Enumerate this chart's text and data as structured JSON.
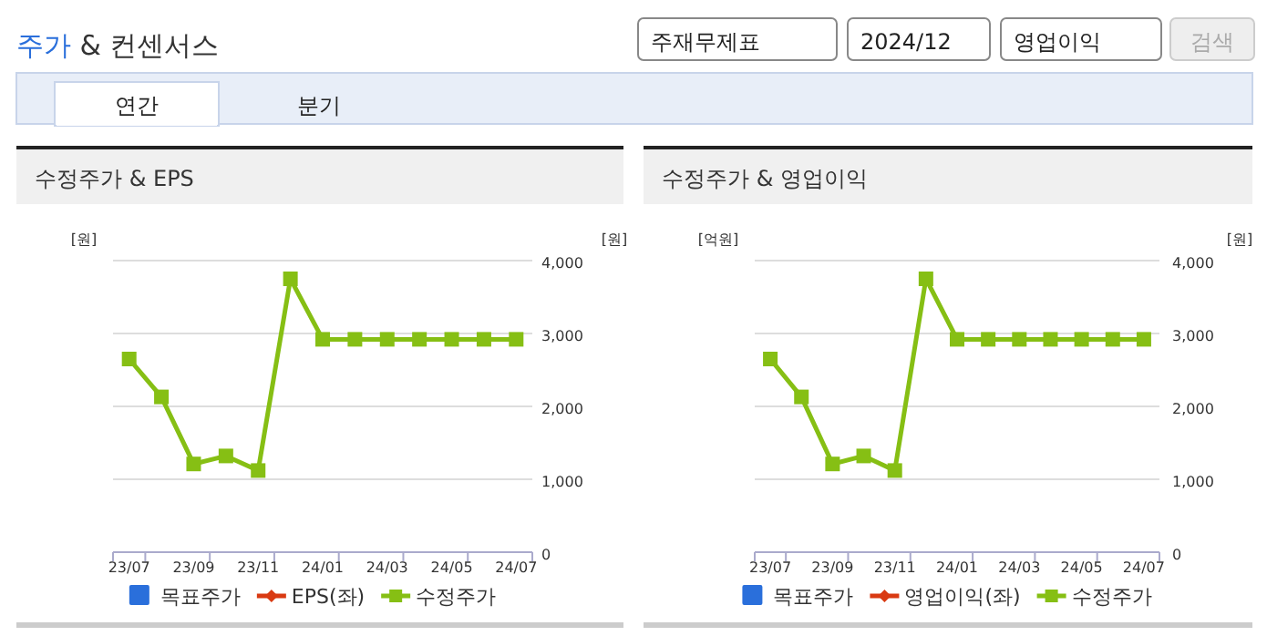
{
  "chart_data": [
    {
      "type": "other",
      "title": "주가 & 컨센서스",
      "annotations": [
        "주재무제표",
        "2024/12",
        "영업이익",
        "검색",
        "연간",
        "분기"
      ]
    },
    {
      "type": "line",
      "title": "수정주가 & EPS",
      "ylabel": "[원]",
      "y2label": "[원]",
      "categories": [
        "23/07",
        null,
        "23/09",
        null,
        "23/11",
        null,
        "24/01",
        null,
        "24/03",
        null,
        "24/05",
        null,
        "24/07"
      ],
      "series": [
        {
          "name": "목표주가",
          "type": "bar",
          "color": "#2a6fdb",
          "values": [
            null,
            null,
            null,
            null,
            null,
            null,
            null,
            null,
            null,
            null,
            null,
            null,
            null
          ]
        },
        {
          "name": "EPS(좌)",
          "type": "line",
          "marker": "diamond",
          "color": "#d93a12",
          "values": [
            null,
            null,
            null,
            null,
            null,
            null,
            null,
            null,
            null,
            null,
            null,
            null,
            null
          ]
        },
        {
          "name": "수정주가",
          "type": "line",
          "marker": "square",
          "axis": "y2",
          "color": "#86bf14",
          "values": [
            2650,
            2130,
            1210,
            1320,
            1120,
            3750,
            2920,
            2920,
            2920,
            2920,
            2920,
            2920,
            2920
          ]
        }
      ],
      "y2lim": [
        0,
        4000
      ],
      "y2ticks": [
        0,
        {
          "value": 1000,
          "label": "1,000"
        },
        {
          "value": 2000,
          "label": "2,000"
        },
        {
          "value": 3000,
          "label": "3,000"
        },
        {
          "value": 4000,
          "label": "4,000"
        }
      ],
      "grid": "y",
      "legend": "bottom"
    },
    {
      "type": "line",
      "title": "수정주가 & 영업이익",
      "ylabel": "[억원]",
      "y2label": "[원]",
      "categories": [
        "23/07",
        null,
        "23/09",
        null,
        "23/11",
        null,
        "24/01",
        null,
        "24/03",
        null,
        "24/05",
        null,
        "24/07"
      ],
      "series": [
        {
          "name": "목표주가",
          "type": "bar",
          "color": "#2a6fdb",
          "values": [
            null,
            null,
            null,
            null,
            null,
            null,
            null,
            null,
            null,
            null,
            null,
            null,
            null
          ]
        },
        {
          "name": "영업이익(좌)",
          "type": "line",
          "marker": "diamond",
          "color": "#d93a12",
          "values": [
            null,
            null,
            null,
            null,
            null,
            null,
            null,
            null,
            null,
            null,
            null,
            null,
            null
          ]
        },
        {
          "name": "수정주가",
          "type": "line",
          "marker": "square",
          "axis": "y2",
          "color": "#86bf14",
          "values": [
            2650,
            2130,
            1210,
            1320,
            1120,
            3750,
            2920,
            2920,
            2920,
            2920,
            2920,
            2920,
            2920
          ]
        }
      ],
      "y2lim": [
        0,
        4000
      ],
      "y2ticks": [
        0,
        {
          "value": 1000,
          "label": "1,000"
        },
        {
          "value": 2000,
          "label": "2,000"
        },
        {
          "value": 3000,
          "label": "3,000"
        },
        {
          "value": 4000,
          "label": "4,000"
        }
      ],
      "grid": "y",
      "legend": "bottom"
    }
  ]
}
